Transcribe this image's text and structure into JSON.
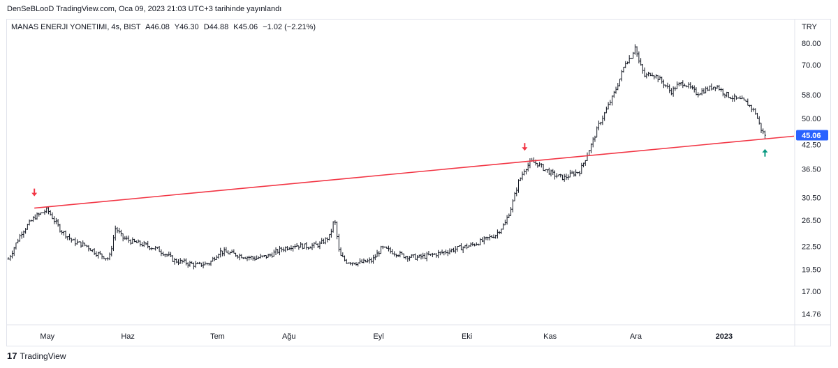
{
  "header": {
    "published_text": "DenSeBLooD TradingView.com, Oca 09, 2023 21:03 UTC+3 tarihinde yayınlandı"
  },
  "legend": {
    "symbol": "MANAS ENERJI YONETIMI, 4s, BIST",
    "open": "A46.08",
    "high": "Y46.30",
    "low": "D44.88",
    "close": "K45.06",
    "change": "−1.02 (−2.21%)"
  },
  "footer": {
    "brand": "TradingView"
  },
  "colors": {
    "candle": "#131722",
    "trendline": "#f23645",
    "arrow_down": "#f23645",
    "arrow_up": "#089981",
    "price_tag": "#2962ff"
  },
  "chart_data": {
    "type": "bar",
    "scale": "log",
    "currency": "TRY",
    "ylim": [
      13.8,
      92
    ],
    "y_ticks": [
      "80.00",
      "70.00",
      "58.00",
      "50.00",
      "42.50",
      "36.50",
      "30.50",
      "26.50",
      "22.50",
      "19.50",
      "17.00",
      "14.76"
    ],
    "x_ticks": [
      "May",
      "Haz",
      "Tem",
      "Ağu",
      "Eyl",
      "Eki",
      "Kas",
      "Ara",
      "2023"
    ],
    "last_price": "45.06",
    "price_path": [
      [
        0,
        20.8
      ],
      [
        2,
        24.5
      ],
      [
        4,
        27.0
      ],
      [
        6,
        28.3
      ],
      [
        8,
        25.0
      ],
      [
        10,
        23.2
      ],
      [
        12,
        22.6
      ],
      [
        13.5,
        21.6
      ],
      [
        14.5,
        21.2
      ],
      [
        15.5,
        20.8
      ],
      [
        16.5,
        25.3
      ],
      [
        17.5,
        23.8
      ],
      [
        19,
        23.2
      ],
      [
        21,
        22.7
      ],
      [
        23,
        22.1
      ],
      [
        24.5,
        21.3
      ],
      [
        25.5,
        20.6
      ],
      [
        27,
        20.4
      ],
      [
        29,
        20.0
      ],
      [
        31,
        20.3
      ],
      [
        32.5,
        21.8
      ],
      [
        34,
        21.6
      ],
      [
        36,
        21.2
      ],
      [
        38,
        20.9
      ],
      [
        40,
        21.2
      ],
      [
        42,
        22.1
      ],
      [
        44,
        22.7
      ],
      [
        46,
        22.5
      ],
      [
        48,
        22.8
      ],
      [
        49.5,
        24.0
      ],
      [
        50.2,
        26.8
      ],
      [
        51,
        21.3
      ],
      [
        52,
        20.5
      ],
      [
        54,
        20.3
      ],
      [
        56,
        20.6
      ],
      [
        57.5,
        22.3
      ],
      [
        59,
        21.8
      ],
      [
        61,
        21.2
      ],
      [
        63,
        21.0
      ],
      [
        65,
        21.3
      ],
      [
        67,
        21.7
      ],
      [
        69,
        22.2
      ],
      [
        71,
        22.6
      ],
      [
        73,
        23.3
      ],
      [
        75,
        24.2
      ],
      [
        76.5,
        26.0
      ],
      [
        77.5,
        29.0
      ],
      [
        78.5,
        33.5
      ],
      [
        79.5,
        36.5
      ],
      [
        80.5,
        38.2
      ],
      [
        81.5,
        37.7
      ],
      [
        82.5,
        36.5
      ],
      [
        84,
        35.2
      ],
      [
        85.5,
        34.5
      ],
      [
        87,
        35.5
      ],
      [
        88,
        36.0
      ],
      [
        89,
        39.5
      ],
      [
        90,
        43.5
      ],
      [
        91,
        48.5
      ],
      [
        92,
        52.5
      ],
      [
        93,
        57.0
      ],
      [
        94,
        63.0
      ],
      [
        95,
        71.0
      ],
      [
        96,
        74.0
      ],
      [
        96.5,
        79.0
      ],
      [
        97,
        72.0
      ],
      [
        98,
        65.0
      ],
      [
        99,
        66.5
      ],
      [
        100,
        64.5
      ],
      [
        101,
        62.0
      ],
      [
        102,
        59.0
      ],
      [
        103,
        61.5
      ],
      [
        104,
        62.5
      ],
      [
        105,
        60.5
      ],
      [
        106,
        58.5
      ],
      [
        107,
        59.5
      ],
      [
        108,
        60.5
      ],
      [
        109,
        61.5
      ],
      [
        110,
        59.0
      ],
      [
        111,
        57.5
      ],
      [
        112,
        56.5
      ],
      [
        113,
        56.0
      ],
      [
        114,
        54.5
      ],
      [
        115,
        52.0
      ],
      [
        115.5,
        49.0
      ],
      [
        116,
        46.3
      ],
      [
        116.5,
        45.06
      ]
    ],
    "trendline": {
      "from": [
        4,
        28.6
      ],
      "to": [
        124,
        44.8
      ]
    },
    "annotations": [
      {
        "kind": "arrow_down",
        "x": 4,
        "y": 31.6
      },
      {
        "kind": "arrow_down",
        "x": 79.5,
        "y": 42.0
      },
      {
        "kind": "arrow_up",
        "x": 116.5,
        "y": 40.3
      }
    ]
  }
}
